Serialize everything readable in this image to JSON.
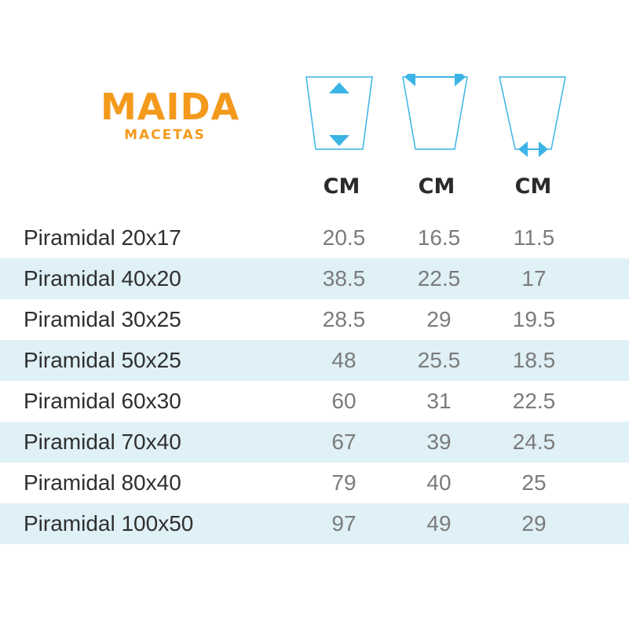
{
  "brand": {
    "name": "MAIDA",
    "tagline": "MACETAS"
  },
  "colors": {
    "brand": "#f39a1c",
    "accent": "#3bb4e5",
    "row_stripe": "#dff0f7"
  },
  "columns": [
    {
      "icon": "pot-height-icon",
      "unit": "CM"
    },
    {
      "icon": "pot-top-width-icon",
      "unit": "CM"
    },
    {
      "icon": "pot-base-width-icon",
      "unit": "CM"
    }
  ],
  "rows": [
    {
      "name": "Piramidal 20x17",
      "values": [
        "20.5",
        "16.5",
        "11.5"
      ]
    },
    {
      "name": "Piramidal 40x20",
      "values": [
        "38.5",
        "22.5",
        "17"
      ]
    },
    {
      "name": "Piramidal 30x25",
      "values": [
        "28.5",
        "29",
        "19.5"
      ]
    },
    {
      "name": "Piramidal 50x25",
      "values": [
        "48",
        "25.5",
        "18.5"
      ]
    },
    {
      "name": "Piramidal 60x30",
      "values": [
        "60",
        "31",
        "22.5"
      ]
    },
    {
      "name": "Piramidal 70x40",
      "values": [
        "67",
        "39",
        "24.5"
      ]
    },
    {
      "name": "Piramidal 80x40",
      "values": [
        "79",
        "40",
        "25"
      ]
    },
    {
      "name": "Piramidal 100x50",
      "values": [
        "97",
        "49",
        "29"
      ]
    }
  ]
}
